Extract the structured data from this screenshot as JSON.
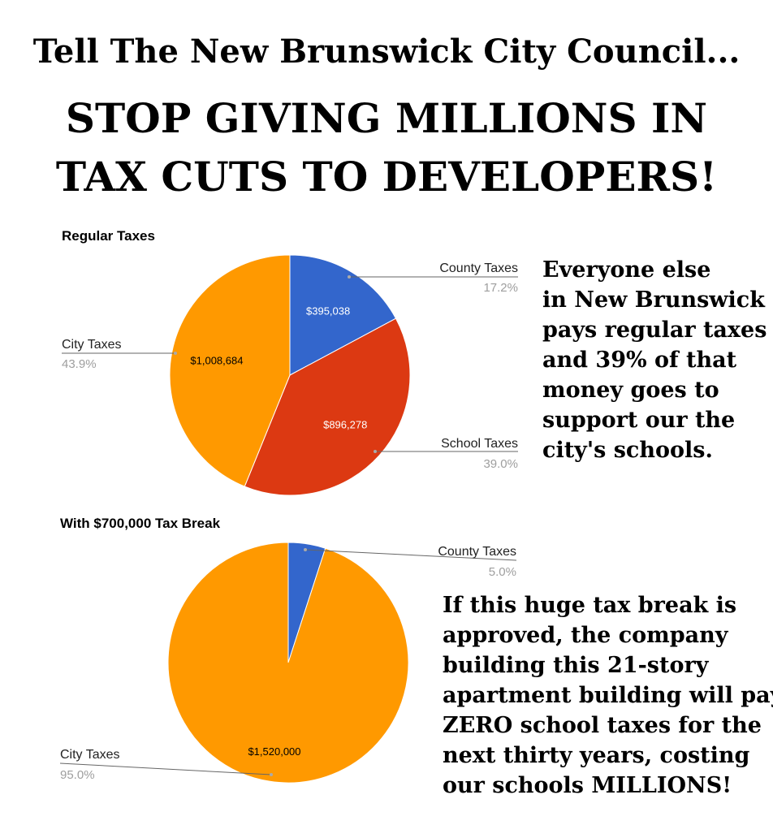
{
  "headline": {
    "line1": "Tell The New Brunswick City Council...",
    "line2": "STOP GIVING MILLIONS IN",
    "line3": "TAX CUTS TO DEVELOPERS!"
  },
  "side_text": {
    "regular": [
      "Everyone else",
      "in New Brunswick",
      "pays regular taxes",
      "and 39% of that",
      "money goes to",
      "support our the",
      "city's schools."
    ],
    "break": [
      "If this huge tax break is",
      "approved, the company",
      "building this 21-story",
      "apartment building will pay",
      "ZERO school taxes for the",
      "next thirty years, costing",
      "our schools MILLIONS!"
    ]
  },
  "colors": {
    "county": "#3366cc",
    "school": "#dc3912",
    "city": "#ff9900"
  },
  "chart_data": [
    {
      "type": "pie",
      "title": "Regular Taxes",
      "slices": [
        {
          "name": "County Taxes",
          "value": 395038,
          "value_label": "$395,038",
          "percent_label": "17.2%",
          "color": "#3366cc",
          "label_color": "#ffffff"
        },
        {
          "name": "School Taxes",
          "value": 896278,
          "value_label": "$896,278",
          "percent_label": "39.0%",
          "color": "#dc3912",
          "label_color": "#ffffff"
        },
        {
          "name": "City Taxes",
          "value": 1008684,
          "value_label": "$1,008,684",
          "percent_label": "43.9%",
          "color": "#ff9900",
          "label_color": "#000000"
        }
      ]
    },
    {
      "type": "pie",
      "title": "With $700,000 Tax Break",
      "slices": [
        {
          "name": "County Taxes",
          "value": 80000,
          "value_label": "",
          "percent_label": "5.0%",
          "color": "#3366cc",
          "label_color": "#ffffff"
        },
        {
          "name": "City Taxes",
          "value": 1520000,
          "value_label": "$1,520,000",
          "percent_label": "95.0%",
          "color": "#ff9900",
          "label_color": "#000000"
        }
      ]
    }
  ]
}
